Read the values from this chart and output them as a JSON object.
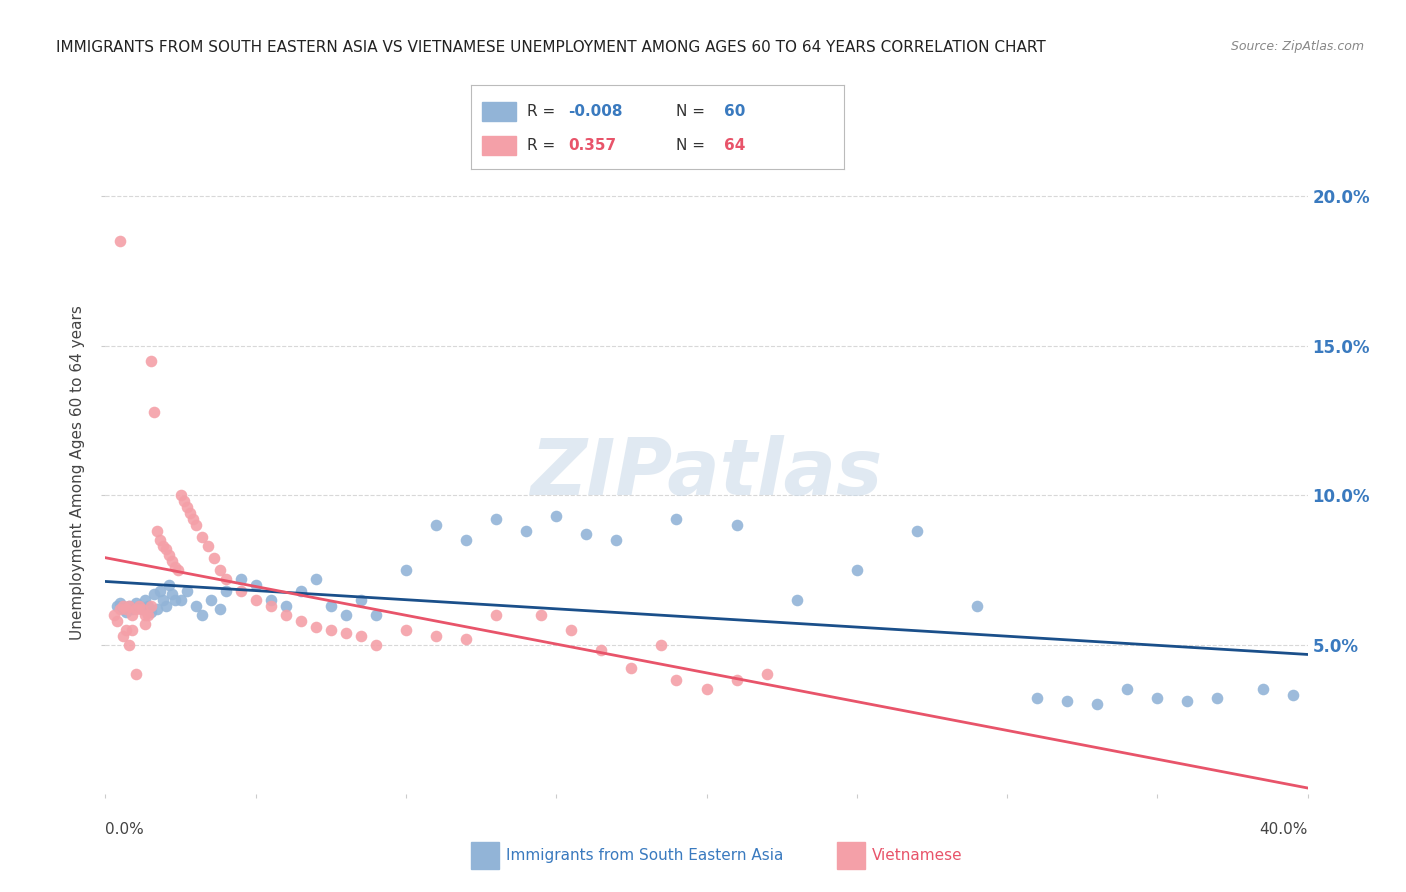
{
  "title": "IMMIGRANTS FROM SOUTH EASTERN ASIA VS VIETNAMESE UNEMPLOYMENT AMONG AGES 60 TO 64 YEARS CORRELATION CHART",
  "source": "Source: ZipAtlas.com",
  "ylabel": "Unemployment Among Ages 60 to 64 years",
  "watermark": "ZIPatlas",
  "legend_blue_label": "Immigrants from South Eastern Asia",
  "legend_pink_label": "Vietnamese",
  "r_blue": "-0.008",
  "n_blue": "60",
  "r_pink": "0.357",
  "n_pink": "64",
  "y_ticks": [
    "5.0%",
    "10.0%",
    "15.0%",
    "20.0%"
  ],
  "y_tick_vals": [
    0.05,
    0.1,
    0.15,
    0.2
  ],
  "x_min": 0.0,
  "x_max": 0.4,
  "y_min": 0.0,
  "y_max": 0.215,
  "blue_color": "#92b4d7",
  "pink_color": "#f4a0a8",
  "blue_line_color": "#1a4f8a",
  "pink_line_color": "#e8546a",
  "grid_color": "#d8d8d8",
  "blue_scatter_x": [
    0.004,
    0.005,
    0.006,
    0.007,
    0.008,
    0.009,
    0.01,
    0.011,
    0.012,
    0.013,
    0.014,
    0.015,
    0.016,
    0.017,
    0.018,
    0.019,
    0.02,
    0.021,
    0.022,
    0.023,
    0.025,
    0.027,
    0.03,
    0.032,
    0.035,
    0.038,
    0.04,
    0.045,
    0.05,
    0.055,
    0.06,
    0.065,
    0.07,
    0.075,
    0.08,
    0.085,
    0.09,
    0.1,
    0.11,
    0.12,
    0.13,
    0.14,
    0.15,
    0.16,
    0.17,
    0.19,
    0.21,
    0.23,
    0.25,
    0.27,
    0.29,
    0.31,
    0.32,
    0.33,
    0.34,
    0.35,
    0.36,
    0.37,
    0.385,
    0.395
  ],
  "blue_scatter_y": [
    0.063,
    0.064,
    0.062,
    0.061,
    0.063,
    0.062,
    0.064,
    0.063,
    0.062,
    0.065,
    0.063,
    0.061,
    0.067,
    0.062,
    0.068,
    0.065,
    0.063,
    0.07,
    0.067,
    0.065,
    0.065,
    0.068,
    0.063,
    0.06,
    0.065,
    0.062,
    0.068,
    0.072,
    0.07,
    0.065,
    0.063,
    0.068,
    0.072,
    0.063,
    0.06,
    0.065,
    0.06,
    0.075,
    0.09,
    0.085,
    0.092,
    0.088,
    0.093,
    0.087,
    0.085,
    0.092,
    0.09,
    0.065,
    0.075,
    0.088,
    0.063,
    0.032,
    0.031,
    0.03,
    0.035,
    0.032,
    0.031,
    0.032,
    0.035,
    0.033
  ],
  "pink_scatter_x": [
    0.003,
    0.004,
    0.005,
    0.005,
    0.006,
    0.006,
    0.007,
    0.007,
    0.008,
    0.008,
    0.009,
    0.009,
    0.01,
    0.01,
    0.011,
    0.012,
    0.013,
    0.013,
    0.014,
    0.015,
    0.015,
    0.016,
    0.017,
    0.018,
    0.019,
    0.02,
    0.021,
    0.022,
    0.023,
    0.024,
    0.025,
    0.026,
    0.027,
    0.028,
    0.029,
    0.03,
    0.032,
    0.034,
    0.036,
    0.038,
    0.04,
    0.045,
    0.05,
    0.055,
    0.06,
    0.065,
    0.07,
    0.075,
    0.08,
    0.085,
    0.09,
    0.1,
    0.11,
    0.12,
    0.13,
    0.145,
    0.155,
    0.165,
    0.175,
    0.185,
    0.19,
    0.2,
    0.21,
    0.22
  ],
  "pink_scatter_y": [
    0.06,
    0.058,
    0.185,
    0.062,
    0.053,
    0.063,
    0.055,
    0.062,
    0.05,
    0.063,
    0.055,
    0.06,
    0.062,
    0.04,
    0.063,
    0.062,
    0.06,
    0.057,
    0.06,
    0.145,
    0.063,
    0.128,
    0.088,
    0.085,
    0.083,
    0.082,
    0.08,
    0.078,
    0.076,
    0.075,
    0.1,
    0.098,
    0.096,
    0.094,
    0.092,
    0.09,
    0.086,
    0.083,
    0.079,
    0.075,
    0.072,
    0.068,
    0.065,
    0.063,
    0.06,
    0.058,
    0.056,
    0.055,
    0.054,
    0.053,
    0.05,
    0.055,
    0.053,
    0.052,
    0.06,
    0.06,
    0.055,
    0.048,
    0.042,
    0.05,
    0.038,
    0.035,
    0.038,
    0.04
  ]
}
